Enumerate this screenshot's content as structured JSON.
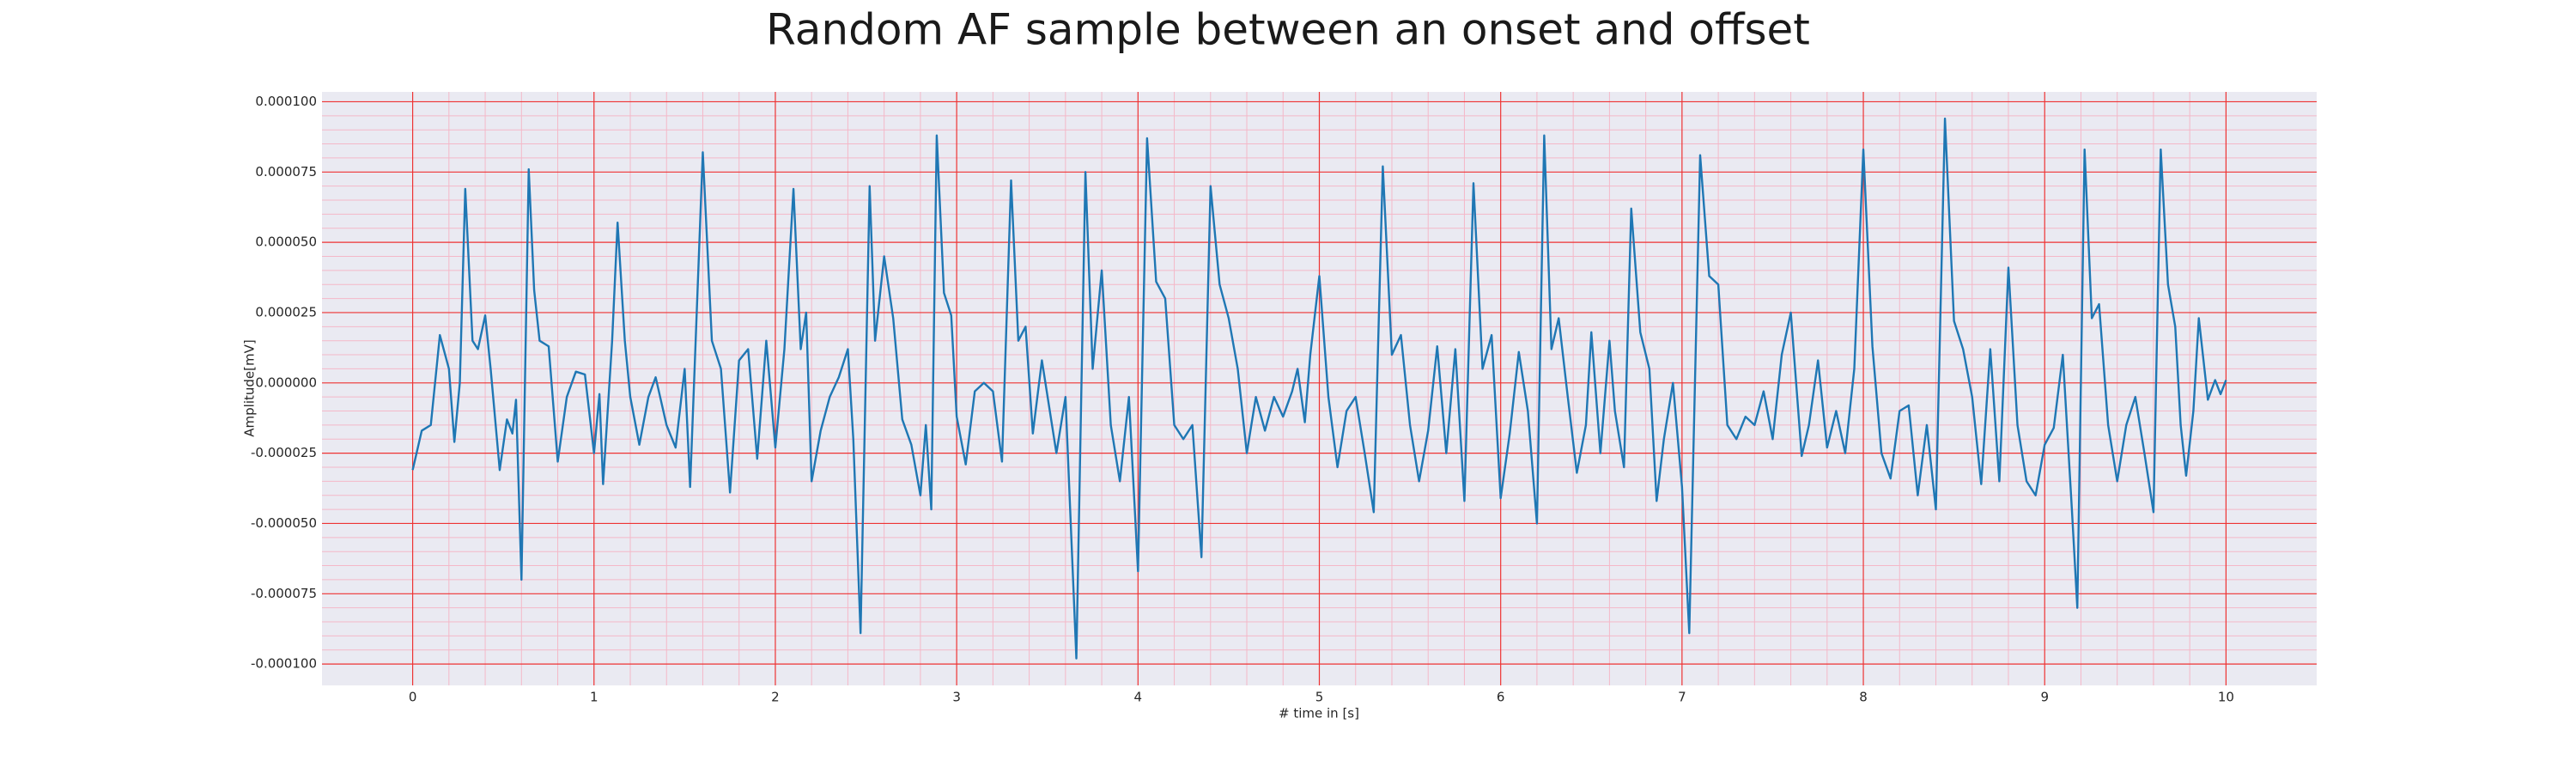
{
  "chart_data": {
    "type": "line",
    "title": "Random AF sample between an onset and offset",
    "x_label": "# time in [s]",
    "y_label": "Amplitude[mV]",
    "grid": true,
    "xlim": [
      -0.5,
      10.5
    ],
    "ylim": [
      -0.0001076,
      0.0001035
    ],
    "xticks": [
      0,
      1,
      2,
      3,
      4,
      5,
      6,
      7,
      8,
      9,
      10
    ],
    "yticks": [
      {
        "value": -0.0001,
        "label": "-0.000100"
      },
      {
        "value": -7.5e-05,
        "label": "-0.000075"
      },
      {
        "value": -5e-05,
        "label": "-0.000050"
      },
      {
        "value": -2.5e-05,
        "label": "-0.000025"
      },
      {
        "value": 0,
        "label": "0.000000"
      },
      {
        "value": 2.5e-05,
        "label": "0.000025"
      },
      {
        "value": 5e-05,
        "label": "0.000050"
      },
      {
        "value": 7.5e-05,
        "label": "0.000075"
      },
      {
        "value": 0.0001,
        "label": "0.000100"
      }
    ],
    "series": [
      {
        "color": "#1f77b4",
        "x": [
          0,
          0.05,
          0.1,
          0.15,
          0.2,
          0.23,
          0.26,
          0.29,
          0.33,
          0.36,
          0.4,
          0.43,
          0.48,
          0.52,
          0.55,
          0.57,
          0.6,
          0.64,
          0.67,
          0.7,
          0.75,
          0.8,
          0.85,
          0.9,
          0.95,
          1.0,
          1.03,
          1.05,
          1.1,
          1.13,
          1.17,
          1.2,
          1.25,
          1.3,
          1.34,
          1.4,
          1.45,
          1.5,
          1.53,
          1.6,
          1.65,
          1.7,
          1.75,
          1.8,
          1.85,
          1.9,
          1.95,
          2.0,
          2.05,
          2.1,
          2.14,
          2.17,
          2.2,
          2.25,
          2.3,
          2.35,
          2.4,
          2.43,
          2.47,
          2.52,
          2.55,
          2.6,
          2.65,
          2.7,
          2.75,
          2.8,
          2.83,
          2.86,
          2.89,
          2.93,
          2.97,
          3.0,
          3.05,
          3.1,
          3.15,
          3.2,
          3.25,
          3.3,
          3.34,
          3.38,
          3.42,
          3.47,
          3.55,
          3.6,
          3.66,
          3.71,
          3.75,
          3.8,
          3.85,
          3.9,
          3.95,
          4.0,
          4.05,
          4.1,
          4.15,
          4.2,
          4.25,
          4.3,
          4.35,
          4.4,
          4.45,
          4.5,
          4.55,
          4.6,
          4.65,
          4.7,
          4.75,
          4.8,
          4.85,
          4.88,
          4.92,
          4.95,
          5.0,
          5.05,
          5.1,
          5.15,
          5.2,
          5.25,
          5.3,
          5.35,
          5.4,
          5.45,
          5.5,
          5.55,
          5.6,
          5.65,
          5.7,
          5.75,
          5.8,
          5.85,
          5.9,
          5.95,
          6.0,
          6.05,
          6.1,
          6.15,
          6.2,
          6.24,
          6.28,
          6.32,
          6.37,
          6.42,
          6.47,
          6.5,
          6.55,
          6.6,
          6.63,
          6.68,
          6.72,
          6.77,
          6.82,
          6.86,
          6.9,
          6.95,
          7.0,
          7.04,
          7.1,
          7.15,
          7.2,
          7.25,
          7.3,
          7.35,
          7.4,
          7.45,
          7.5,
          7.55,
          7.6,
          7.66,
          7.7,
          7.75,
          7.8,
          7.85,
          7.9,
          7.95,
          8.0,
          8.05,
          8.1,
          8.15,
          8.2,
          8.25,
          8.3,
          8.35,
          8.4,
          8.45,
          8.5,
          8.55,
          8.6,
          8.65,
          8.7,
          8.75,
          8.8,
          8.85,
          8.9,
          8.95,
          9.0,
          9.05,
          9.1,
          9.15,
          9.18,
          9.22,
          9.26,
          9.3,
          9.35,
          9.4,
          9.45,
          9.5,
          9.55,
          9.6,
          9.64,
          9.68,
          9.72,
          9.75,
          9.78,
          9.82,
          9.85,
          9.9,
          9.94,
          9.97,
          10.0
        ],
        "values": [
          -3.1e-05,
          -1.7e-05,
          -1.5e-05,
          1.7e-05,
          5e-06,
          -2.1e-05,
          0,
          6.9e-05,
          1.5e-05,
          1.2e-05,
          2.4e-05,
          5e-06,
          -3.1e-05,
          -1.3e-05,
          -1.8e-05,
          -6e-06,
          -7e-05,
          7.6e-05,
          3.3e-05,
          1.5e-05,
          1.3e-05,
          -2.8e-05,
          -5e-06,
          4e-06,
          3e-06,
          -2.5e-05,
          -4e-06,
          -3.6e-05,
          1.5e-05,
          5.7e-05,
          1.5e-05,
          -5e-06,
          -2.2e-05,
          -5e-06,
          2e-06,
          -1.5e-05,
          -2.3e-05,
          5e-06,
          -3.7e-05,
          8.2e-05,
          1.5e-05,
          5e-06,
          -3.9e-05,
          8e-06,
          1.2e-05,
          -2.7e-05,
          1.5e-05,
          -2.3e-05,
          1.2e-05,
          6.9e-05,
          1.2e-05,
          2.5e-05,
          -3.5e-05,
          -1.7e-05,
          -5e-06,
          2e-06,
          1.2e-05,
          -2e-05,
          -8.9e-05,
          7e-05,
          1.5e-05,
          4.5e-05,
          2.3e-05,
          -1.3e-05,
          -2.2e-05,
          -4e-05,
          -1.5e-05,
          -4.5e-05,
          8.8e-05,
          3.2e-05,
          2.4e-05,
          -1.2e-05,
          -2.9e-05,
          -3e-06,
          0,
          -3e-06,
          -2.8e-05,
          7.2e-05,
          1.5e-05,
          2e-05,
          -1.8e-05,
          8e-06,
          -2.5e-05,
          -5e-06,
          -9.8e-05,
          7.5e-05,
          5e-06,
          4e-05,
          -1.5e-05,
          -3.5e-05,
          -5e-06,
          -6.7e-05,
          8.7e-05,
          3.6e-05,
          3e-05,
          -1.5e-05,
          -2e-05,
          -1.5e-05,
          -6.2e-05,
          7e-05,
          3.5e-05,
          2.3e-05,
          5e-06,
          -2.5e-05,
          -5e-06,
          -1.7e-05,
          -5e-06,
          -1.2e-05,
          -3e-06,
          5e-06,
          -1.4e-05,
          1e-05,
          3.8e-05,
          -5e-06,
          -3e-05,
          -1e-05,
          -5e-06,
          -2.5e-05,
          -4.6e-05,
          7.7e-05,
          1e-05,
          1.7e-05,
          -1.5e-05,
          -3.5e-05,
          -1.7e-05,
          1.3e-05,
          -2.5e-05,
          1.2e-05,
          -4.2e-05,
          7.1e-05,
          5e-06,
          1.7e-05,
          -4.1e-05,
          -1.8e-05,
          1.1e-05,
          -1e-05,
          -5e-05,
          8.8e-05,
          1.2e-05,
          2.3e-05,
          -5e-06,
          -3.2e-05,
          -1.5e-05,
          1.8e-05,
          -2.5e-05,
          1.5e-05,
          -1e-05,
          -3e-05,
          6.2e-05,
          1.8e-05,
          5e-06,
          -4.2e-05,
          -2e-05,
          0,
          -3.7e-05,
          -8.9e-05,
          8.1e-05,
          3.8e-05,
          3.5e-05,
          -1.5e-05,
          -2e-05,
          -1.2e-05,
          -1.5e-05,
          -3e-06,
          -2e-05,
          1e-05,
          2.5e-05,
          -2.6e-05,
          -1.5e-05,
          8e-06,
          -2.3e-05,
          -1e-05,
          -2.5e-05,
          5e-06,
          8.3e-05,
          1.3e-05,
          -2.5e-05,
          -3.4e-05,
          -1e-05,
          -8e-06,
          -4e-05,
          -1.5e-05,
          -4.5e-05,
          9.4e-05,
          2.2e-05,
          1.2e-05,
          -5e-06,
          -3.6e-05,
          1.2e-05,
          -3.5e-05,
          4.1e-05,
          -1.5e-05,
          -3.5e-05,
          -4e-05,
          -2.2e-05,
          -1.6e-05,
          1e-05,
          -4.5e-05,
          -8e-05,
          8.3e-05,
          2.3e-05,
          2.8e-05,
          -1.5e-05,
          -3.5e-05,
          -1.5e-05,
          -5e-06,
          -2.5e-05,
          -4.6e-05,
          8.3e-05,
          3.5e-05,
          2e-05,
          -1.5e-05,
          -3.3e-05,
          -1e-05,
          2.3e-05,
          -6e-06,
          1e-06,
          -4e-06,
          1e-06
        ]
      }
    ]
  }
}
